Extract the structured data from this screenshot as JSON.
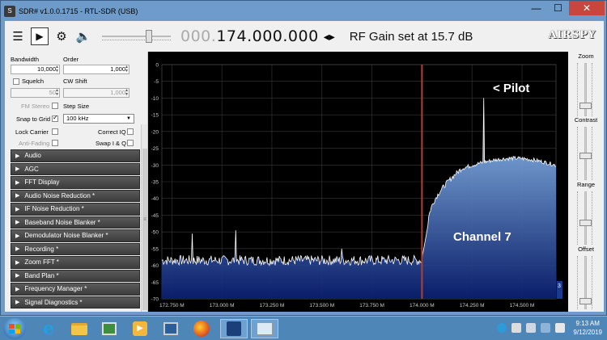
{
  "window": {
    "title": "SDR# v1.0.0.1715 - RTL-SDR (USB)",
    "minimize": "—",
    "maximize": "☐",
    "close": "✕"
  },
  "toolbar": {
    "freq_dim": "000.",
    "freq_main": "174.000.000",
    "freq_arrows": "◂▸",
    "status": "RF Gain set at 15.7 dB",
    "logo": "AIRSPY",
    "menu_icon": "hamburger-icon",
    "play_icon": "play-icon",
    "settings_icon": "gear-icon",
    "volume_icon": "speaker-icon"
  },
  "left_panel": {
    "bandwidth_label": "Bandwidth",
    "order_label": "Order",
    "bandwidth_value": "10,000",
    "order_value": "1,000",
    "squelch_label": "Squelch",
    "cw_shift_label": "CW Shift",
    "squelch_value": "50",
    "cw_shift_value": "1,000",
    "fm_stereo_label": "FM Stereo",
    "step_size_label": "Step Size",
    "snap_label": "Snap to Grid",
    "step_size_value": "100 kHz",
    "lock_carrier_label": "Lock Carrier",
    "correct_iq_label": "Correct IQ",
    "anti_fading_label": "Anti-Fading",
    "swap_iq_label": "Swap I & Q",
    "sections": [
      "Audio",
      "AGC",
      "FFT Display",
      "Audio Noise Reduction *",
      "IF Noise Reduction *",
      "Baseband Noise Blanker *",
      "Demodulator Noise Blanker *",
      "Recording *",
      "Zoom FFT *",
      "Band Plan *",
      "Frequency Manager *",
      "Signal Diagnostics *"
    ]
  },
  "right_panel": {
    "zoom_label": "Zoom",
    "contrast_label": "Contrast",
    "range_label": "Range",
    "offset_label": "Offset",
    "zoom_level": 0.85,
    "contrast_level": 0.55,
    "range_level": 0.6,
    "offset_level": 0.9
  },
  "spectrum": {
    "pilot_annotation": "< Pilot",
    "channel_annotation": "Channel 7",
    "corner_value": "3",
    "marker_freq_mhz": 174.0,
    "pilot_freq_mhz": 174.31,
    "y_ticks": [
      "0",
      "-5",
      "-10",
      "-15",
      "-20",
      "-25",
      "-30",
      "-35",
      "-40",
      "-45",
      "-50",
      "-55",
      "-60",
      "-65",
      "-70"
    ],
    "x_ticks": [
      "172.750 M",
      "173.000 M",
      "173.250 M",
      "173.500 M",
      "173.750 M",
      "174.000 M",
      "174.250 M",
      "174.500 M"
    ],
    "colors": {
      "trace": "#ffffff",
      "fill_top": "#9fd2ff",
      "fill_bottom": "#0a1f6e",
      "marker": "#b04030",
      "grid": "#3a3a3a"
    }
  },
  "taskbar": {
    "start_icon": "windows-start-icon",
    "apps": [
      "internet-explorer-icon",
      "file-explorer-icon",
      "control-panel-icon",
      "media-player-icon",
      "network-icon",
      "firefox-icon",
      "sdrsharp-icon",
      "paint-icon"
    ],
    "clock_time": "9:13 AM",
    "clock_date": "9/12/2019"
  }
}
